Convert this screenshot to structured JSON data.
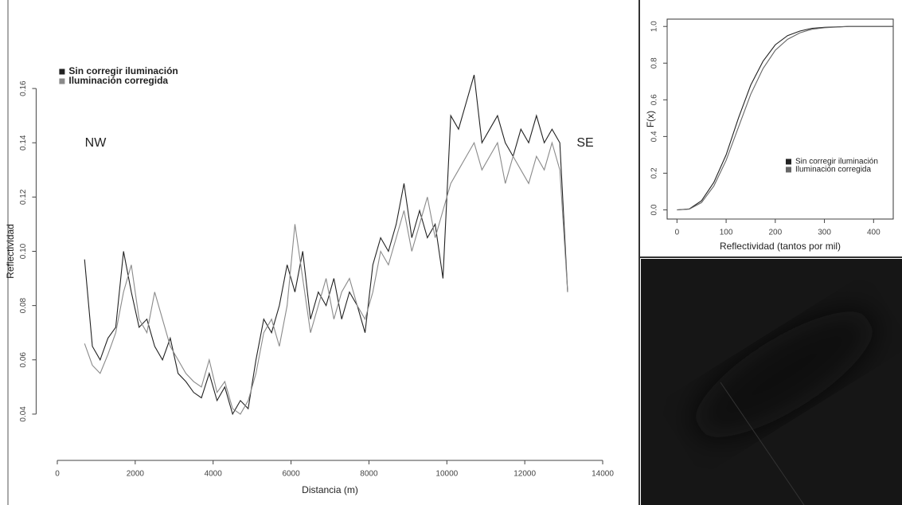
{
  "chart_data": [
    {
      "type": "line",
      "xlabel": "Distancia (m)",
      "ylabel": "Reflectividad",
      "annotations": [
        "NW",
        "SE"
      ],
      "x": [
        700,
        900,
        1100,
        1300,
        1500,
        1700,
        1900,
        2100,
        2300,
        2500,
        2700,
        2900,
        3100,
        3300,
        3500,
        3700,
        3900,
        4100,
        4300,
        4500,
        4700,
        4900,
        5100,
        5300,
        5500,
        5700,
        5900,
        6100,
        6300,
        6500,
        6700,
        6900,
        7100,
        7300,
        7500,
        7700,
        7900,
        8100,
        8300,
        8500,
        8700,
        8900,
        9100,
        9300,
        9500,
        9700,
        9900,
        10100,
        10300,
        10500,
        10700,
        10900,
        11100,
        11300,
        11500,
        11700,
        11900,
        12100,
        12300,
        12500,
        12700,
        12900,
        13100
      ],
      "series": [
        {
          "name": "Sin corregir iluminación",
          "color": "#222222",
          "values": [
            0.097,
            0.065,
            0.06,
            0.068,
            0.072,
            0.1,
            0.085,
            0.072,
            0.075,
            0.065,
            0.06,
            0.068,
            0.055,
            0.052,
            0.048,
            0.046,
            0.055,
            0.045,
            0.05,
            0.04,
            0.045,
            0.042,
            0.06,
            0.075,
            0.07,
            0.08,
            0.095,
            0.085,
            0.1,
            0.075,
            0.085,
            0.08,
            0.09,
            0.075,
            0.085,
            0.08,
            0.07,
            0.095,
            0.105,
            0.1,
            0.11,
            0.125,
            0.105,
            0.115,
            0.105,
            0.11,
            0.09,
            0.15,
            0.145,
            0.155,
            0.165,
            0.14,
            0.145,
            0.15,
            0.14,
            0.135,
            0.145,
            0.14,
            0.15,
            0.14,
            0.145,
            0.14,
            0.085
          ]
        },
        {
          "name": "Iluminación corregida",
          "color": "#8a8a8a",
          "values": [
            0.066,
            0.058,
            0.055,
            0.062,
            0.07,
            0.085,
            0.095,
            0.075,
            0.07,
            0.085,
            0.075,
            0.065,
            0.06,
            0.055,
            0.052,
            0.05,
            0.06,
            0.048,
            0.052,
            0.042,
            0.04,
            0.045,
            0.055,
            0.07,
            0.075,
            0.065,
            0.08,
            0.11,
            0.09,
            0.07,
            0.08,
            0.09,
            0.075,
            0.085,
            0.09,
            0.08,
            0.075,
            0.085,
            0.1,
            0.095,
            0.105,
            0.115,
            0.1,
            0.11,
            0.12,
            0.105,
            0.115,
            0.125,
            0.13,
            0.135,
            0.14,
            0.13,
            0.135,
            0.14,
            0.125,
            0.135,
            0.13,
            0.125,
            0.135,
            0.13,
            0.14,
            0.13,
            0.085
          ]
        }
      ],
      "xlim": [
        -400,
        14400
      ],
      "ylim": [
        0.025,
        0.175
      ],
      "xticks": [
        0,
        2000,
        4000,
        6000,
        8000,
        10000,
        12000,
        14000
      ],
      "yticks": [
        {
          "value": 0.04,
          "label": "0.04"
        },
        {
          "value": 0.06,
          "label": "0.06"
        },
        {
          "value": 0.08,
          "label": "0.08"
        },
        {
          "value": 0.1,
          "label": "0.10"
        },
        {
          "value": 0.12,
          "label": "0.12"
        },
        {
          "value": 0.14,
          "label": "0.14"
        },
        {
          "value": 0.16,
          "label": "0.16"
        }
      ],
      "legend": "top-left",
      "frame": false
    },
    {
      "type": "line",
      "xlabel": "Reflectividad (tantos por mil)",
      "ylabel": "F(x)",
      "x": [
        0,
        25,
        50,
        75,
        100,
        125,
        150,
        175,
        200,
        225,
        250,
        275,
        300,
        350,
        400,
        440
      ],
      "series": [
        {
          "name": "Sin corregir iluminación",
          "color": "#222222",
          "values": [
            0,
            0.005,
            0.05,
            0.15,
            0.3,
            0.5,
            0.68,
            0.81,
            0.9,
            0.95,
            0.975,
            0.99,
            0.995,
            1,
            1,
            1
          ]
        },
        {
          "name": "Iluminación corregida",
          "color": "#666666",
          "values": [
            0,
            0.004,
            0.04,
            0.13,
            0.27,
            0.45,
            0.63,
            0.77,
            0.87,
            0.93,
            0.965,
            0.985,
            0.993,
            1,
            1,
            1
          ]
        }
      ],
      "xlim": [
        -20,
        440
      ],
      "ylim": [
        -0.05,
        1.04
      ],
      "xticks": [
        0,
        100,
        200,
        300,
        400
      ],
      "yticks": [
        {
          "value": 0,
          "label": "0.0"
        },
        {
          "value": 0.2,
          "label": "0.2"
        },
        {
          "value": 0.4,
          "label": "0.4"
        },
        {
          "value": 0.6,
          "label": "0.6"
        },
        {
          "value": 0.8,
          "label": "0.8"
        },
        {
          "value": 1,
          "label": "1.0"
        }
      ],
      "legend": "bottom-right",
      "frame": true
    }
  ]
}
